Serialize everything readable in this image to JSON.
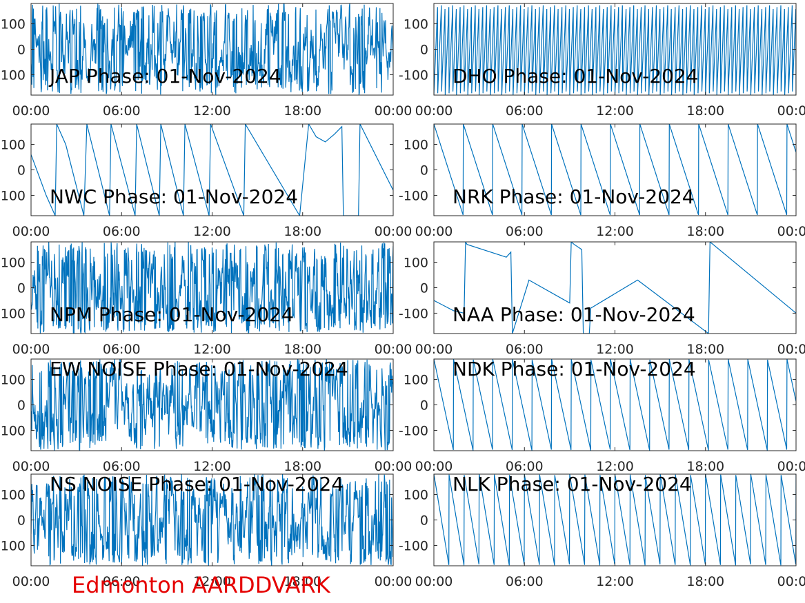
{
  "figure": {
    "station_label": "Edmonton AARDDVARK",
    "station_color": "#e50000",
    "line_color": "#0072bd",
    "axis_color": "#262626"
  },
  "chart_data": [
    {
      "type": "line",
      "title": "JAP Phase: 01-Nov-2024",
      "xlabel": "",
      "ylabel": "",
      "x_ticks": [
        "00:00",
        "06:00",
        "12:00",
        "18:00",
        "00:00"
      ],
      "x_range_hours": [
        0,
        24
      ],
      "ylim": [
        -180,
        180
      ],
      "y_ticks": [
        -100,
        0,
        100
      ],
      "y_tick_labels": [
        "-100",
        "0",
        "100"
      ],
      "series": [
        {
          "pattern": "noise",
          "seed": 11,
          "desc": "phase wraps rapidly across full range all day"
        }
      ]
    },
    {
      "type": "line",
      "title": "DHO Phase: 01-Nov-2024",
      "xlabel": "",
      "ylabel": "",
      "x_ticks": [
        "00:00",
        "06:00",
        "12:00",
        "18:00",
        "00:00"
      ],
      "x_range_hours": [
        0,
        24
      ],
      "ylim": [
        -180,
        180
      ],
      "y_ticks": [
        -100,
        0,
        100
      ],
      "y_tick_labels": [
        "-100",
        "0",
        "100"
      ],
      "series": [
        {
          "pattern": "sawtooth",
          "period_h": 0.25,
          "direction": "up",
          "desc": "dense regular phase wraps all day"
        }
      ]
    },
    {
      "type": "line",
      "title": "NWC Phase: 01-Nov-2024",
      "xlabel": "",
      "ylabel": "",
      "x_ticks": [
        "00:00",
        "06:00",
        "12:00",
        "18:00",
        "00:00"
      ],
      "x_range_hours": [
        0,
        24
      ],
      "ylim": [
        -180,
        180
      ],
      "y_ticks": [
        -100,
        0,
        100
      ],
      "y_tick_labels": [
        "-100",
        "0",
        "100"
      ],
      "series": [
        {
          "x_hours": [
            0,
            1.0,
            1.6,
            1.7,
            2.3,
            3.5,
            3.7,
            5.2,
            5.3,
            6.9,
            7.0,
            8.5,
            8.6,
            10.1,
            10.2,
            11.8,
            11.9,
            14.1,
            14.2,
            17.8,
            18.4,
            18.9,
            19.5,
            20.1,
            20.6,
            20.7,
            21.7,
            21.8,
            24
          ],
          "y_deg": [
            60,
            -100,
            -180,
            180,
            100,
            -180,
            180,
            -180,
            180,
            -180,
            180,
            -180,
            180,
            -180,
            180,
            -180,
            180,
            -180,
            180,
            -180,
            180,
            130,
            110,
            140,
            170,
            -180,
            -180,
            180,
            -80
          ]
        }
      ]
    },
    {
      "type": "line",
      "title": "NRK Phase: 01-Nov-2024",
      "xlabel": "",
      "ylabel": "",
      "x_ticks": [
        "00:00",
        "06:00",
        "12:00",
        "18:00",
        "00:00"
      ],
      "x_range_hours": [
        0,
        24
      ],
      "ylim": [
        -180,
        180
      ],
      "y_ticks": [
        -100,
        0,
        100
      ],
      "y_tick_labels": [
        "-100",
        "0",
        "100"
      ],
      "series": [
        {
          "pattern": "sawtooth",
          "period_h": 1.95,
          "direction": "down",
          "desc": "regular downward phase drift with wraps about every two hours"
        }
      ]
    },
    {
      "type": "line",
      "title": "NPM Phase: 01-Nov-2024",
      "xlabel": "",
      "ylabel": "",
      "x_ticks": [
        "00:00",
        "06:00",
        "12:00",
        "18:00",
        "00:00"
      ],
      "x_range_hours": [
        0,
        24
      ],
      "ylim": [
        -180,
        180
      ],
      "y_ticks": [
        -100,
        0,
        100
      ],
      "y_tick_labels": [
        "-100",
        "0",
        "100"
      ],
      "series": [
        {
          "pattern": "noise",
          "seed": 23,
          "desc": "noisy phase with frequent wraps"
        }
      ]
    },
    {
      "type": "line",
      "title": "NAA Phase: 01-Nov-2024",
      "xlabel": "",
      "ylabel": "",
      "x_ticks": [
        "00:00",
        "06:00",
        "12:00",
        "18:00",
        "00:00"
      ],
      "x_range_hours": [
        0,
        24
      ],
      "ylim": [
        -180,
        180
      ],
      "y_ticks": [
        -100,
        0,
        100
      ],
      "y_tick_labels": [
        "-100",
        "0",
        "100"
      ],
      "series": [
        {
          "x_hours": [
            0,
            1.3,
            2.0,
            2.1,
            2.2,
            4.8,
            5.1,
            5.2,
            6.2,
            6.3,
            9.0,
            9.1,
            9.3,
            9.8,
            9.9,
            10.3,
            10.4,
            13.5,
            18.2,
            18.3,
            24
          ],
          "y_deg": [
            -50,
            -90,
            -100,
            180,
            170,
            120,
            140,
            -180,
            10,
            30,
            -60,
            180,
            170,
            150,
            -180,
            -180,
            -80,
            30,
            -180,
            180,
            -100
          ]
        }
      ]
    },
    {
      "type": "line",
      "title": "EW NOISE Phase: 01-Nov-2024",
      "xlabel": "",
      "ylabel": "",
      "x_ticks": [
        "00:00",
        "06:00",
        "12:00",
        "18:00",
        "00:00"
      ],
      "x_range_hours": [
        0,
        24
      ],
      "ylim": [
        -180,
        180
      ],
      "y_ticks": [
        -100,
        0,
        100
      ],
      "y_tick_labels": [
        "-100",
        "0",
        "100"
      ],
      "series": [
        {
          "pattern": "noise",
          "seed": 37,
          "desc": "random noise phase"
        }
      ]
    },
    {
      "type": "line",
      "title": "NDK Phase: 01-Nov-2024",
      "xlabel": "",
      "ylabel": "",
      "x_ticks": [
        "00:00",
        "06:00",
        "12:00",
        "18:00",
        "00:00"
      ],
      "x_range_hours": [
        0,
        24
      ],
      "ylim": [
        -180,
        180
      ],
      "y_ticks": [
        -100,
        0,
        100
      ],
      "y_tick_labels": [
        "-100",
        "0",
        "100"
      ],
      "series": [
        {
          "pattern": "sawtooth",
          "period_h": 1.3,
          "direction": "down",
          "desc": "regular downward phase drift with wraps"
        }
      ]
    },
    {
      "type": "line",
      "title": "NS NOISE Phase: 01-Nov-2024",
      "xlabel": "",
      "ylabel": "",
      "x_ticks": [
        "00:00",
        "06:00",
        "12:00",
        "18:00",
        "00:00"
      ],
      "x_range_hours": [
        0,
        24
      ],
      "ylim": [
        -180,
        180
      ],
      "y_ticks": [
        -100,
        0,
        100
      ],
      "y_tick_labels": [
        "-100",
        "0",
        "100"
      ],
      "series": [
        {
          "pattern": "noise",
          "seed": 41,
          "desc": "random noise phase"
        }
      ]
    },
    {
      "type": "line",
      "title": "NLK Phase: 01-Nov-2024",
      "xlabel": "",
      "ylabel": "",
      "x_ticks": [
        "00:00",
        "06:00",
        "12:00",
        "18:00",
        "00:00"
      ],
      "x_range_hours": [
        0,
        24
      ],
      "ylim": [
        -180,
        180
      ],
      "y_ticks": [
        -100,
        0,
        100
      ],
      "y_tick_labels": [
        "-100",
        "0",
        "100"
      ],
      "series": [
        {
          "pattern": "sawtooth",
          "period_h": 1.0,
          "direction": "down",
          "desc": "steady downward phase drift with wraps"
        }
      ]
    }
  ]
}
